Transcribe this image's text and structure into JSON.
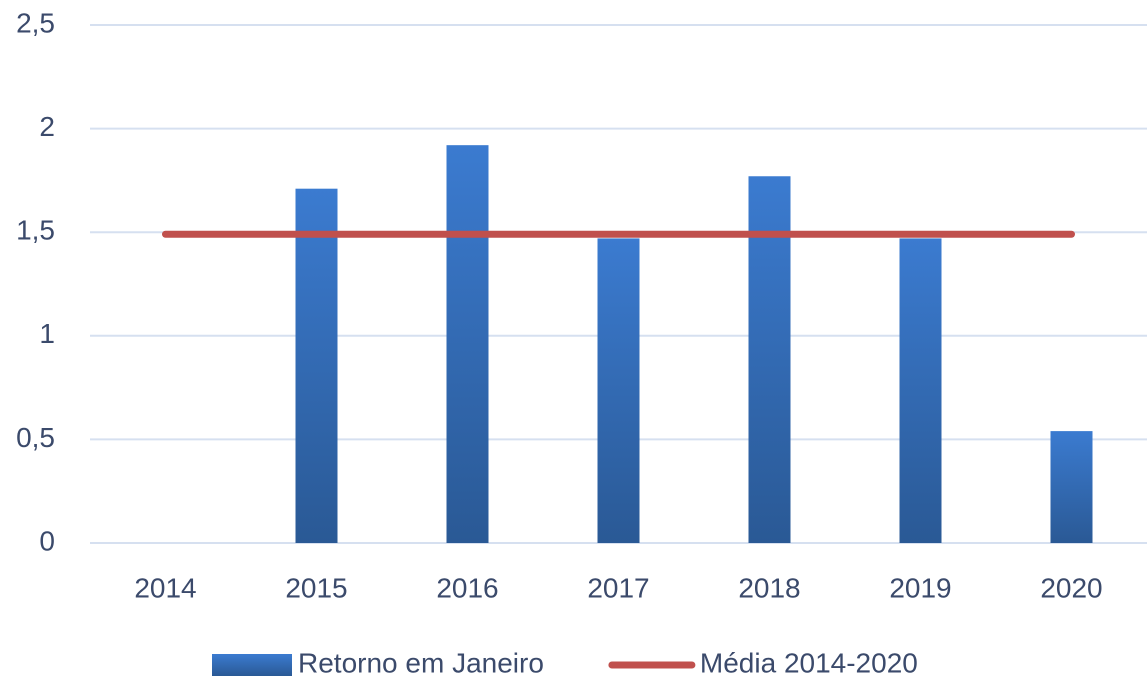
{
  "chart_data": {
    "type": "combo",
    "categories": [
      "2014",
      "2015",
      "2016",
      "2017",
      "2018",
      "2019",
      "2020"
    ],
    "series": [
      {
        "name": "Retorno em Janeiro",
        "type": "bar",
        "color": "#3873c4",
        "values": [
          null,
          1.71,
          1.92,
          1.47,
          1.77,
          1.47,
          0.54
        ]
      },
      {
        "name": "Média 2014-2020",
        "type": "line",
        "color": "#c0504d",
        "values": [
          1.49,
          1.49,
          1.49,
          1.49,
          1.49,
          1.49,
          1.49
        ]
      }
    ],
    "ylim": [
      0,
      2.5
    ],
    "yticks": [
      0,
      {
        "value": 0.5,
        "label": "0,5"
      },
      1,
      {
        "value": 1.5,
        "label": "1,5"
      },
      2,
      {
        "value": 2.5,
        "label": "2,5"
      }
    ],
    "grid": true,
    "legend": "bottom"
  }
}
